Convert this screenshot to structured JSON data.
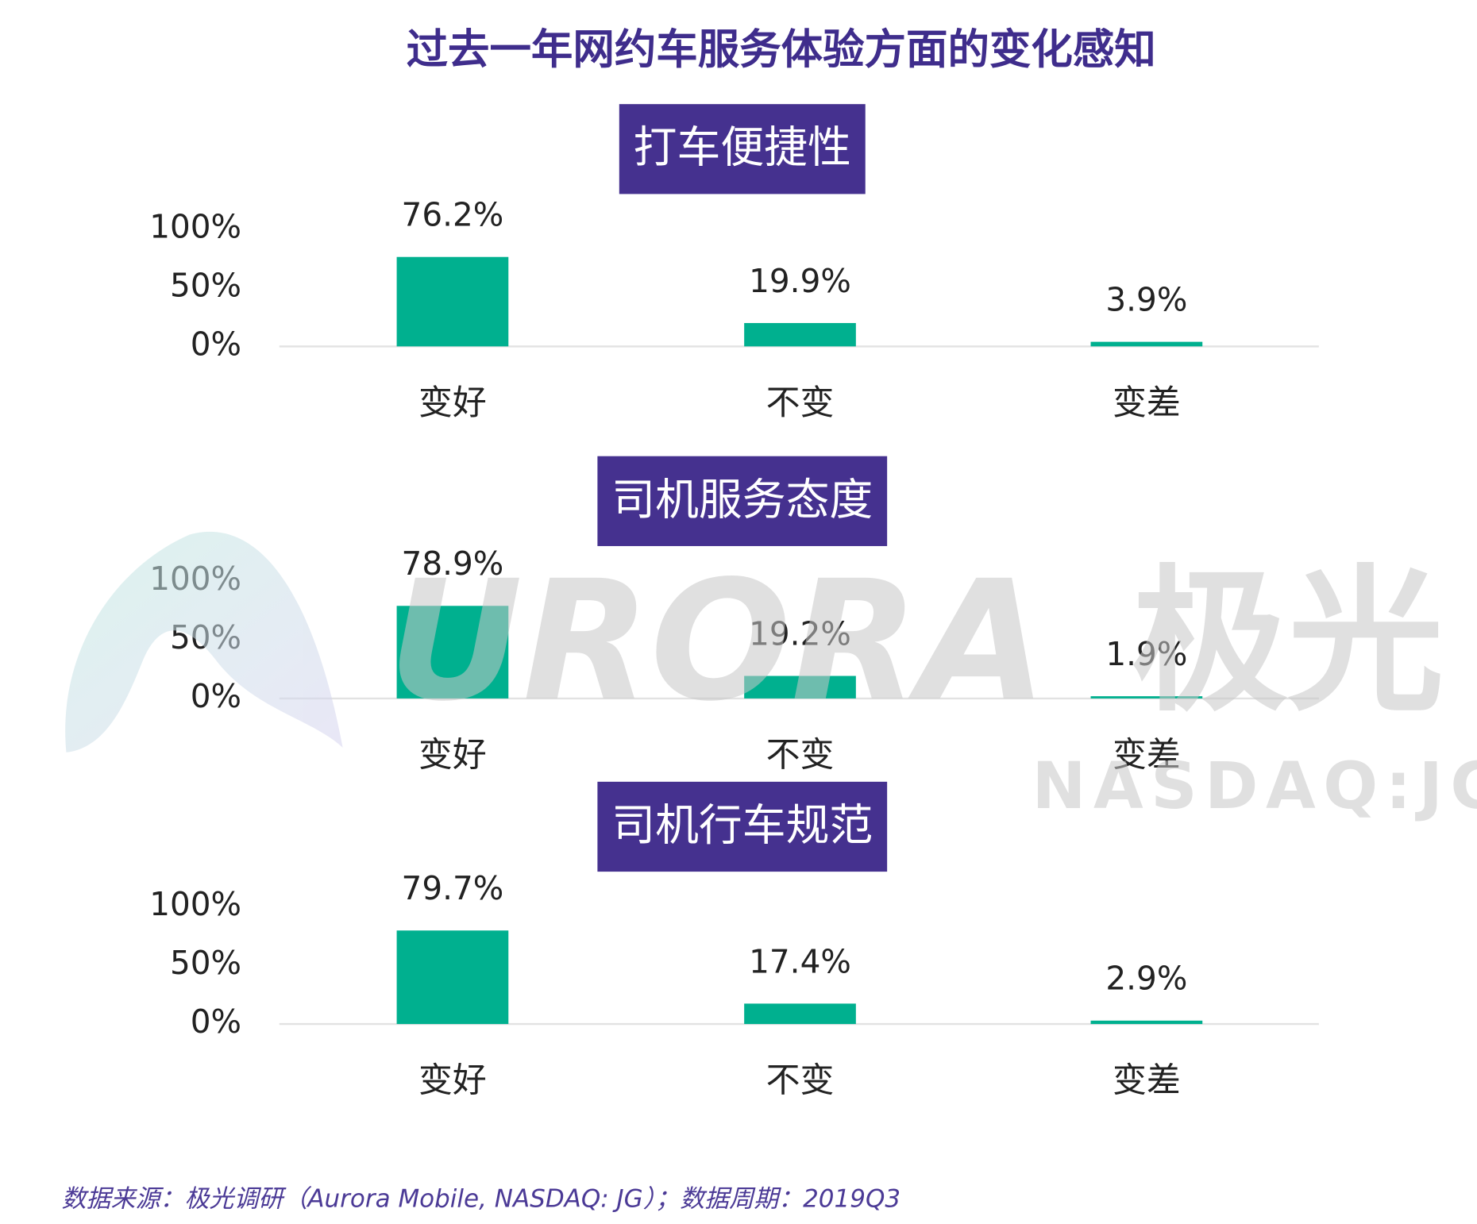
{
  "title": "过去一年网约车服务体验方面的变化感知",
  "source": "数据来源：极光调研（Aurora Mobile, NASDAQ: JG）；数据周期：2019Q3",
  "watermark": {
    "brand": "URORA",
    "cn": "极光",
    "ticker": "NASDAQ:JG"
  },
  "chart_data": [
    {
      "type": "bar",
      "title": "打车便捷性",
      "categories": [
        "变好",
        "不变",
        "变差"
      ],
      "values": [
        76.2,
        19.9,
        3.9
      ],
      "value_labels": [
        "76.2%",
        "19.9%",
        "3.9%"
      ],
      "color": "#00b08f",
      "ylim": [
        0,
        100
      ],
      "yticks": [
        {
          "value": 0,
          "label": "0%"
        },
        {
          "value": 50,
          "label": "50%"
        },
        {
          "value": 100,
          "label": "100%"
        }
      ]
    },
    {
      "type": "bar",
      "title": "司机服务态度",
      "categories": [
        "变好",
        "不变",
        "变差"
      ],
      "values": [
        78.9,
        19.2,
        1.9
      ],
      "value_labels": [
        "78.9%",
        "19.2%",
        "1.9%"
      ],
      "color": "#00b08f",
      "ylim": [
        0,
        100
      ],
      "yticks": [
        {
          "value": 0,
          "label": "0%"
        },
        {
          "value": 50,
          "label": "50%"
        },
        {
          "value": 100,
          "label": "100%"
        }
      ]
    },
    {
      "type": "bar",
      "title": "司机行车规范",
      "categories": [
        "变好",
        "不变",
        "变差"
      ],
      "values": [
        79.7,
        17.4,
        2.9
      ],
      "value_labels": [
        "79.7%",
        "17.4%",
        "2.9%"
      ],
      "color": "#00b08f",
      "ylim": [
        0,
        100
      ],
      "yticks": [
        {
          "value": 0,
          "label": "0%"
        },
        {
          "value": 50,
          "label": "50%"
        },
        {
          "value": 100,
          "label": "100%"
        }
      ]
    }
  ]
}
